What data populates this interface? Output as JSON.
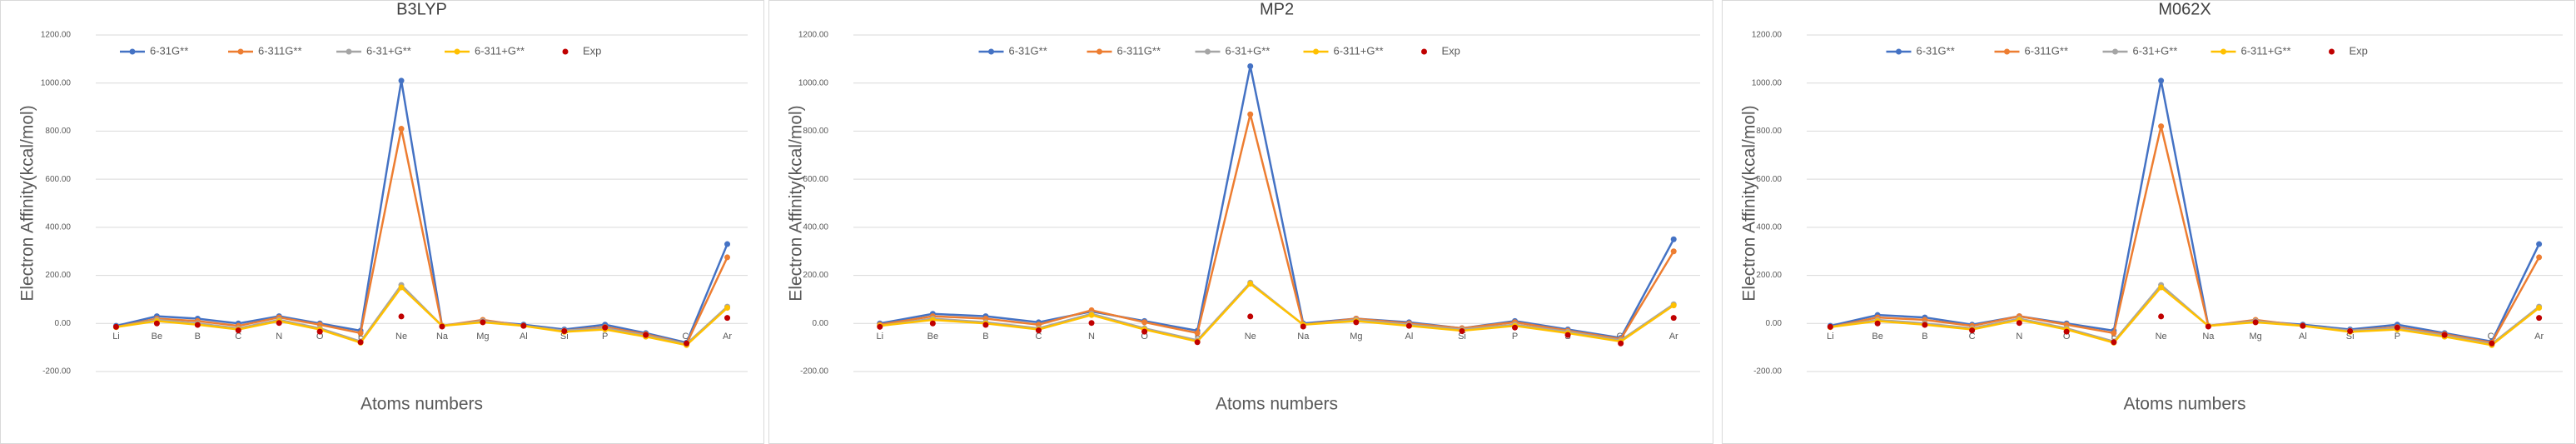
{
  "chart_data": [
    {
      "type": "line",
      "title": "B3LYP",
      "x_label": "Atoms numbers",
      "y_label": "Electron Affinity(kcal/mol)",
      "categories": [
        "Li",
        "Be",
        "B",
        "C",
        "N",
        "O",
        "F",
        "Ne",
        "Na",
        "Mg",
        "Al",
        "Si",
        "P",
        "S",
        "Cl",
        "Ar"
      ],
      "ylim": [
        -200,
        1200
      ],
      "yticks": [
        {
          "value": -200,
          "label": "-200.00"
        },
        {
          "value": 0,
          "label": "0.00"
        },
        {
          "value": 200,
          "label": "200.00"
        },
        {
          "value": 400,
          "label": "400.00"
        },
        {
          "value": 600,
          "label": "600.00"
        },
        {
          "value": 800,
          "label": "800.00"
        },
        {
          "value": 1000,
          "label": "1000.00"
        },
        {
          "value": 1200,
          "label": "1200.00"
        }
      ],
      "grid": true,
      "legend": "top",
      "series": [
        {
          "name": "6-31G**",
          "color": "#4472c4",
          "values": [
            -10,
            30,
            20,
            0,
            30,
            0,
            -30,
            1010,
            -10,
            10,
            -5,
            -25,
            -5,
            -40,
            -80,
            330
          ]
        },
        {
          "name": "6-311G**",
          "color": "#ed7d31",
          "values": [
            -15,
            20,
            10,
            -10,
            25,
            -5,
            -40,
            810,
            -10,
            15,
            -10,
            -30,
            -15,
            -45,
            -85,
            275
          ]
        },
        {
          "name": "6-31+G**",
          "color": "#a5a5a5",
          "values": [
            -15,
            15,
            0,
            -20,
            15,
            -20,
            -75,
            160,
            -10,
            10,
            -10,
            -30,
            -20,
            -50,
            -85,
            70
          ]
        },
        {
          "name": "6-311+G**",
          "color": "#ffc000",
          "values": [
            -15,
            10,
            -5,
            -25,
            10,
            -25,
            -80,
            150,
            -10,
            5,
            -10,
            -35,
            -25,
            -55,
            -90,
            65
          ]
        },
        {
          "name": "Exp",
          "color": "#c00000",
          "line": false,
          "values": [
            -14,
            0,
            -6,
            -29,
            2,
            -34,
            -78,
            29,
            -13,
            5,
            -10,
            -32,
            -17,
            -48,
            -83,
            23
          ]
        }
      ]
    },
    {
      "type": "line",
      "title": "MP2",
      "x_label": "Atoms numbers",
      "y_label": "Electron Affinity(kcal/mol)",
      "categories": [
        "Li",
        "Be",
        "B",
        "C",
        "N",
        "O",
        "F",
        "Ne",
        "Na",
        "Mg",
        "Al",
        "Si",
        "P",
        "S",
        "Cl",
        "Ar"
      ],
      "ylim": [
        -200,
        1200
      ],
      "yticks": [
        {
          "value": -200,
          "label": "-200.00"
        },
        {
          "value": 0,
          "label": "0.00"
        },
        {
          "value": 200,
          "label": "200.00"
        },
        {
          "value": 400,
          "label": "400.00"
        },
        {
          "value": 600,
          "label": "600.00"
        },
        {
          "value": 800,
          "label": "800.00"
        },
        {
          "value": 1000,
          "label": "1000.00"
        },
        {
          "value": 1200,
          "label": "1200.00"
        }
      ],
      "grid": true,
      "legend": "top",
      "series": [
        {
          "name": "6-31G**",
          "color": "#4472c4",
          "values": [
            0,
            40,
            30,
            5,
            50,
            10,
            -30,
            1070,
            0,
            20,
            5,
            -20,
            10,
            -25,
            -60,
            350
          ]
        },
        {
          "name": "6-311G**",
          "color": "#ed7d31",
          "values": [
            -5,
            30,
            20,
            -5,
            55,
            5,
            -40,
            870,
            -5,
            20,
            0,
            -20,
            5,
            -30,
            -65,
            300
          ]
        },
        {
          "name": "6-31+G**",
          "color": "#a5a5a5",
          "values": [
            -10,
            20,
            5,
            -20,
            40,
            -20,
            -70,
            170,
            -5,
            15,
            -5,
            -25,
            -5,
            -35,
            -70,
            80
          ]
        },
        {
          "name": "6-311+G**",
          "color": "#ffc000",
          "values": [
            -10,
            15,
            0,
            -25,
            35,
            -25,
            -75,
            165,
            -5,
            10,
            -10,
            -30,
            -10,
            -40,
            -75,
            75
          ]
        },
        {
          "name": "Exp",
          "color": "#c00000",
          "line": false,
          "values": [
            -14,
            0,
            -6,
            -29,
            2,
            -34,
            -78,
            29,
            -13,
            5,
            -10,
            -32,
            -17,
            -48,
            -83,
            23
          ]
        }
      ]
    },
    {
      "type": "line",
      "title": "M062X",
      "x_label": "Atoms numbers",
      "y_label": "Electron Affinity(kcal/mol)",
      "categories": [
        "Li",
        "Be",
        "B",
        "C",
        "N",
        "O",
        "F",
        "Ne",
        "Na",
        "Mg",
        "Al",
        "Si",
        "P",
        "S",
        "Cl",
        "Ar"
      ],
      "ylim": [
        -200,
        1200
      ],
      "yticks": [
        {
          "value": -200,
          "label": "-200.00"
        },
        {
          "value": 0,
          "label": "0.00"
        },
        {
          "value": 200,
          "label": "200.00"
        },
        {
          "value": 400,
          "label": "400.00"
        },
        {
          "value": 600,
          "label": "600.00"
        },
        {
          "value": 800,
          "label": "800.00"
        },
        {
          "value": 1000,
          "label": "1000.00"
        },
        {
          "value": 1200,
          "label": "1200.00"
        }
      ],
      "grid": true,
      "legend": "top",
      "series": [
        {
          "name": "6-31G**",
          "color": "#4472c4",
          "values": [
            -10,
            35,
            25,
            -5,
            30,
            0,
            -30,
            1010,
            -10,
            10,
            -5,
            -25,
            -5,
            -40,
            -75,
            330
          ]
        },
        {
          "name": "6-311G**",
          "color": "#ed7d31",
          "values": [
            -15,
            25,
            15,
            -10,
            30,
            -5,
            -40,
            820,
            -10,
            15,
            -10,
            -30,
            -15,
            -45,
            -80,
            275
          ]
        },
        {
          "name": "6-31+G**",
          "color": "#a5a5a5",
          "values": [
            -15,
            15,
            0,
            -20,
            20,
            -20,
            -75,
            160,
            -10,
            10,
            -10,
            -30,
            -20,
            -50,
            -85,
            70
          ]
        },
        {
          "name": "6-311+G**",
          "color": "#ffc000",
          "values": [
            -15,
            10,
            -5,
            -25,
            15,
            -25,
            -80,
            150,
            -10,
            5,
            -10,
            -35,
            -25,
            -55,
            -90,
            65
          ]
        },
        {
          "name": "Exp",
          "color": "#c00000",
          "line": false,
          "values": [
            -14,
            0,
            -6,
            -29,
            2,
            -34,
            -78,
            29,
            -13,
            5,
            -10,
            -32,
            -17,
            -48,
            -83,
            23
          ]
        }
      ]
    }
  ]
}
